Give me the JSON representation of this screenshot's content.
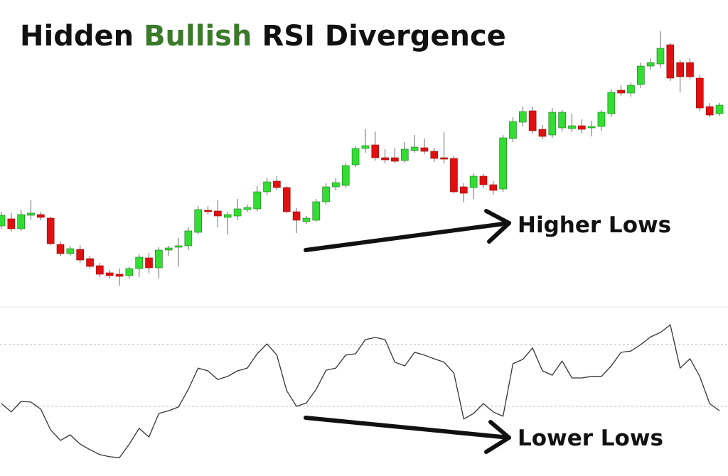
{
  "chart_data": [
    {
      "type": "candlestick",
      "title_parts": [
        "Hidden",
        "Bullish",
        "RSI Divergence"
      ],
      "title_colors": [
        "#111111",
        "#3a7a2a",
        "#111111"
      ],
      "annotation": "Higher Lows",
      "up_color": "#33dd33",
      "down_color": "#e01010",
      "ylim": [
        0,
        400
      ],
      "open": [
        112,
        122,
        108,
        127,
        128,
        123,
        86,
        73,
        79,
        66,
        56,
        46,
        44,
        42,
        52,
        67,
        53,
        78,
        82,
        84,
        103,
        134,
        133,
        124,
        126,
        135,
        136,
        160,
        175,
        166,
        132,
        118,
        120,
        146,
        167,
        169,
        198,
        221,
        226,
        208,
        208,
        204,
        218,
        222,
        217,
        208,
        207,
        167,
        166,
        182,
        170,
        164,
        235,
        258,
        274,
        248,
        240,
        250,
        249,
        253,
        250,
        252,
        270,
        303,
        299,
        311,
        337,
        340,
        367,
        342,
        342,
        320,
        280,
        270
      ],
      "high": [
        132,
        130,
        135,
        148,
        132,
        125,
        90,
        84,
        85,
        70,
        60,
        50,
        52,
        55,
        72,
        74,
        82,
        84,
        95,
        110,
        140,
        140,
        148,
        132,
        150,
        142,
        168,
        180,
        182,
        168,
        137,
        126,
        150,
        172,
        180,
        200,
        224,
        248,
        245,
        220,
        222,
        230,
        240,
        235,
        222,
        244,
        210,
        172,
        186,
        185,
        175,
        240,
        265,
        280,
        280,
        254,
        278,
        275,
        270,
        262,
        260,
        275,
        305,
        310,
        314,
        342,
        348,
        386,
        370,
        346,
        348,
        325,
        285,
        285
      ],
      "low": [
        108,
        104,
        105,
        120,
        120,
        85,
        70,
        70,
        60,
        52,
        40,
        38,
        28,
        38,
        40,
        45,
        38,
        70,
        55,
        78,
        100,
        128,
        110,
        100,
        120,
        132,
        133,
        155,
        162,
        130,
        102,
        115,
        118,
        142,
        162,
        166,
        195,
        215,
        204,
        200,
        200,
        201,
        215,
        213,
        202,
        200,
        158,
        145,
        150,
        166,
        156,
        160,
        230,
        252,
        242,
        234,
        236,
        245,
        244,
        242,
        238,
        246,
        265,
        295,
        294,
        306,
        332,
        335,
        316,
        300,
        318,
        274,
        265,
        267
      ],
      "close": [
        127,
        108,
        128,
        130,
        124,
        87,
        73,
        80,
        64,
        55,
        44,
        42,
        41,
        52,
        68,
        53,
        78,
        81,
        84,
        105,
        135,
        132,
        126,
        128,
        136,
        138,
        160,
        174,
        166,
        132,
        120,
        123,
        146,
        167,
        173,
        197,
        221,
        225,
        208,
        205,
        203,
        220,
        223,
        217,
        207,
        206,
        160,
        158,
        182,
        170,
        162,
        236,
        259,
        273,
        246,
        238,
        272,
        272,
        253,
        248,
        252,
        272,
        300,
        299,
        310,
        337,
        342,
        362,
        320,
        322,
        322,
        278,
        268,
        282
      ]
    },
    {
      "type": "line",
      "annotation": "Lower Lows",
      "color": "#333333",
      "ylim": [
        20,
        80
      ],
      "levels": [
        60,
        40
      ],
      "values": [
        40.9,
        38.2,
        41.6,
        41.4,
        39.1,
        32.4,
        29.0,
        30.8,
        27.8,
        26.0,
        24.4,
        23.7,
        23.4,
        27.8,
        32.9,
        30.1,
        37.7,
        38.6,
        39.8,
        45.5,
        52.4,
        51.5,
        48.7,
        49.7,
        51.5,
        52.4,
        57.0,
        60.2,
        56.6,
        45.1,
        40.0,
        41.1,
        45.5,
        51.7,
        52.4,
        56.6,
        57.0,
        61.6,
        62.3,
        61.6,
        54.3,
        53.1,
        57.5,
        56.6,
        55.4,
        54.3,
        50.8,
        35.9,
        37.7,
        40.9,
        38.2,
        36.8,
        53.8,
        55.2,
        58.9,
        51.5,
        50.1,
        54.7,
        49.2,
        49.2,
        49.7,
        49.7,
        53.1,
        57.5,
        57.9,
        60.0,
        62.5,
        63.9,
        66.4,
        52.4,
        55.4,
        49.7,
        40.9,
        38.6
      ]
    }
  ]
}
